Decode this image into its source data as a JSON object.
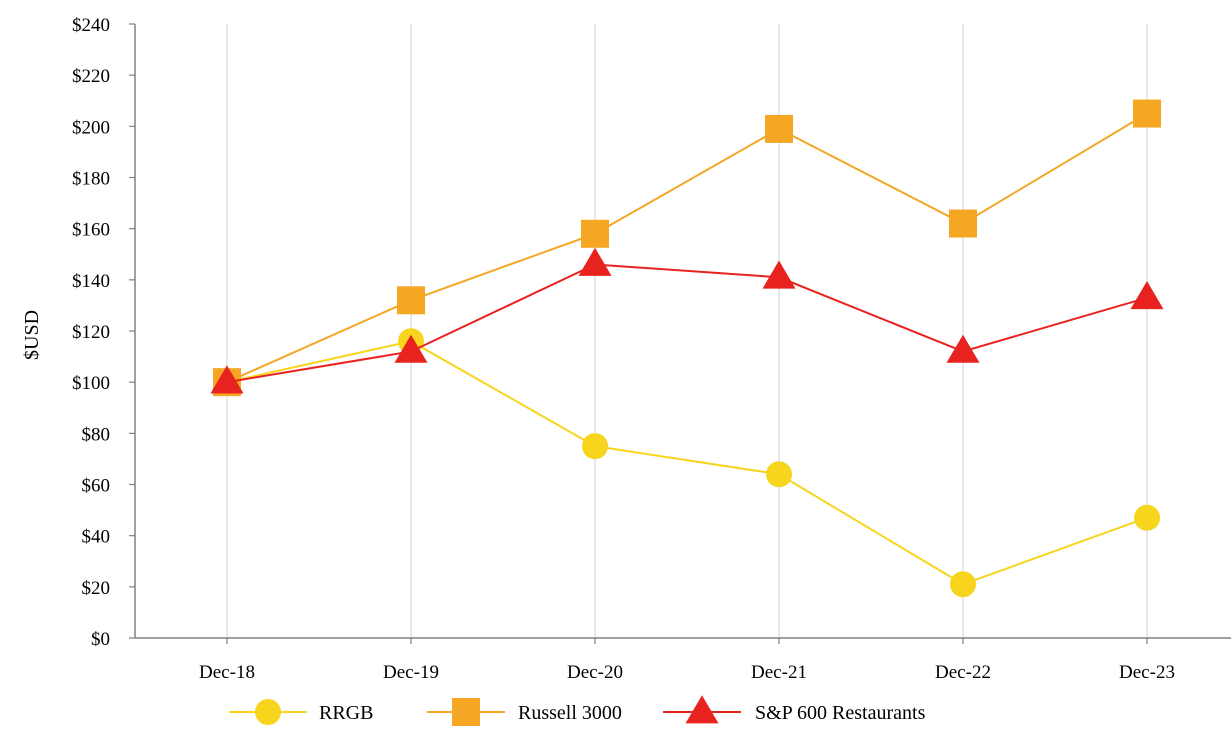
{
  "chart_data": {
    "type": "line",
    "title": "",
    "xlabel": "",
    "ylabel": "$USD",
    "categories": [
      "Dec-18",
      "Dec-19",
      "Dec-20",
      "Dec-21",
      "Dec-22",
      "Dec-23"
    ],
    "ylim": [
      0,
      240
    ],
    "yticks": [
      0,
      20,
      40,
      60,
      80,
      100,
      120,
      140,
      160,
      180,
      200,
      220,
      240
    ],
    "ytick_labels": [
      "$0",
      "$20",
      "$40",
      "$60",
      "$80",
      "$100",
      "$120",
      "$140",
      "$160",
      "$180",
      "$200",
      "$220",
      "$240"
    ],
    "grid": "vertical",
    "legend_position": "bottom",
    "series": [
      {
        "name": "RRGB",
        "values": [
          100,
          116,
          75,
          64,
          21,
          47
        ],
        "color": "#f7d51d",
        "marker": "circle"
      },
      {
        "name": "Russell 3000",
        "values": [
          100,
          132,
          158,
          199,
          162,
          205
        ],
        "color": "#f5a623",
        "marker": "square"
      },
      {
        "name": "S&P 600 Restaurants",
        "values": [
          100,
          112,
          146,
          141,
          112,
          133
        ],
        "color": "#e8221e",
        "marker": "triangle"
      }
    ]
  }
}
